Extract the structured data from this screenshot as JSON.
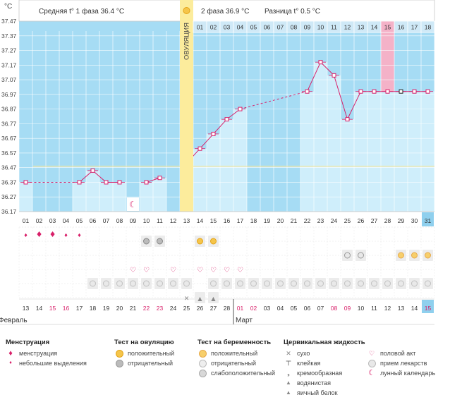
{
  "header": {
    "phase1_label": "Средняя t° 1 фаза",
    "phase1_value": "36.4 °C",
    "phase2_label": "2 фаза",
    "phase2_value": "36.9 °C",
    "diff_label": "Разница",
    "diff_value": "t° 0.5 °C",
    "unit": "°C",
    "ovulation_label": "ОВУЛЯЦИЯ"
  },
  "chart_data": {
    "type": "line",
    "title": "",
    "ylabel": "°C",
    "yticks": [
      "37.47",
      "37.37",
      "37.27",
      "37.17",
      "37.07",
      "36.97",
      "36.87",
      "36.77",
      "36.67",
      "36.57",
      "36.47",
      "36.37",
      "36.27",
      "36.17"
    ],
    "ylim": [
      36.17,
      37.47
    ],
    "cycle_days": [
      "01",
      "02",
      "03",
      "04",
      "05",
      "06",
      "07",
      "08",
      "09",
      "10",
      "11",
      "12",
      "13",
      "14",
      "15",
      "16",
      "17",
      "18",
      "19",
      "20",
      "21",
      "22",
      "23",
      "24",
      "25",
      "26",
      "27",
      "28",
      "29",
      "30",
      "31"
    ],
    "top_days": [
      "01",
      "02",
      "03",
      "04",
      "05",
      "06",
      "07",
      "08",
      "09",
      "10",
      "11",
      "12",
      "13",
      "14",
      "15",
      "16",
      "17",
      "18"
    ],
    "dates": [
      "13",
      "14",
      "15",
      "16",
      "17",
      "18",
      "19",
      "20",
      "21",
      "22",
      "23",
      "24",
      "25",
      "26",
      "27",
      "28",
      "01",
      "02",
      "03",
      "04",
      "05",
      "06",
      "07",
      "08",
      "09",
      "10",
      "11",
      "12",
      "13",
      "14",
      "15"
    ],
    "months": [
      "Февраль",
      "Март"
    ],
    "temperatures": [
      36.37,
      null,
      null,
      null,
      36.37,
      36.45,
      36.37,
      36.37,
      null,
      36.37,
      36.4,
      null,
      36.5,
      36.6,
      36.7,
      36.8,
      36.87,
      null,
      null,
      null,
      null,
      36.99,
      37.19,
      37.1,
      36.8,
      36.99,
      36.99,
      36.99,
      36.99,
      36.99,
      36.99
    ],
    "dashed_segments": [
      [
        0,
        4
      ],
      [
        16,
        21
      ]
    ],
    "ovulation_day": 13,
    "highlight_top_day": "15",
    "current_day": "31",
    "coverline": 36.48
  },
  "rows": {
    "menstruation": [
      0,
      0,
      0,
      0,
      0,
      null,
      null,
      null,
      null,
      null,
      null,
      null,
      null,
      null,
      null,
      null,
      null,
      null,
      null,
      null,
      null,
      null,
      null,
      null,
      null,
      null,
      null,
      null,
      null,
      null,
      null
    ],
    "menstruation_big": [
      false,
      true,
      true,
      false,
      false
    ],
    "ovulation_test": {
      "negative": [
        9,
        10
      ],
      "positive": [
        13,
        14
      ]
    },
    "pregnancy_test": {
      "negative": [
        24,
        25
      ],
      "positive": [
        28,
        29,
        30
      ]
    },
    "intercourse": [
      8,
      9,
      11,
      13,
      14,
      15,
      16
    ],
    "medication": [
      5,
      6,
      7,
      8,
      9,
      10,
      11,
      12,
      14,
      15,
      16,
      17,
      18,
      19,
      20,
      21,
      22,
      23,
      24,
      25,
      26,
      27,
      28,
      29,
      30
    ],
    "fluid": {
      "dry": [
        12
      ],
      "watery": [
        13,
        14
      ]
    },
    "lunar": [
      8
    ]
  },
  "legend": {
    "menstruation": {
      "title": "Менструация",
      "items": [
        "менструация",
        "небольшие выделения"
      ]
    },
    "ovulation_test": {
      "title": "Тест на овуляцию",
      "items": [
        "положительный",
        "отрицательный"
      ]
    },
    "pregnancy_test": {
      "title": "Тест на беременность",
      "items": [
        "положительный",
        "отрицательный",
        "слабоположительный"
      ]
    },
    "cervical": {
      "title": "Цервикальная жидкость",
      "items": [
        "сухо",
        "клейкая",
        "кремообразная",
        "водянистая",
        "яичный белок"
      ]
    },
    "other": {
      "items": [
        "половой акт",
        "прием лекарств",
        "лунный календарь"
      ]
    }
  },
  "colors": {
    "sky": "#a6dcf4",
    "bar": "#cfeefb",
    "line": "#d81f69",
    "ovulation": "#fcec9c",
    "highlight": "#f4b2c8",
    "current": "#8fd0ee",
    "coverline": "#f4e7a0"
  }
}
